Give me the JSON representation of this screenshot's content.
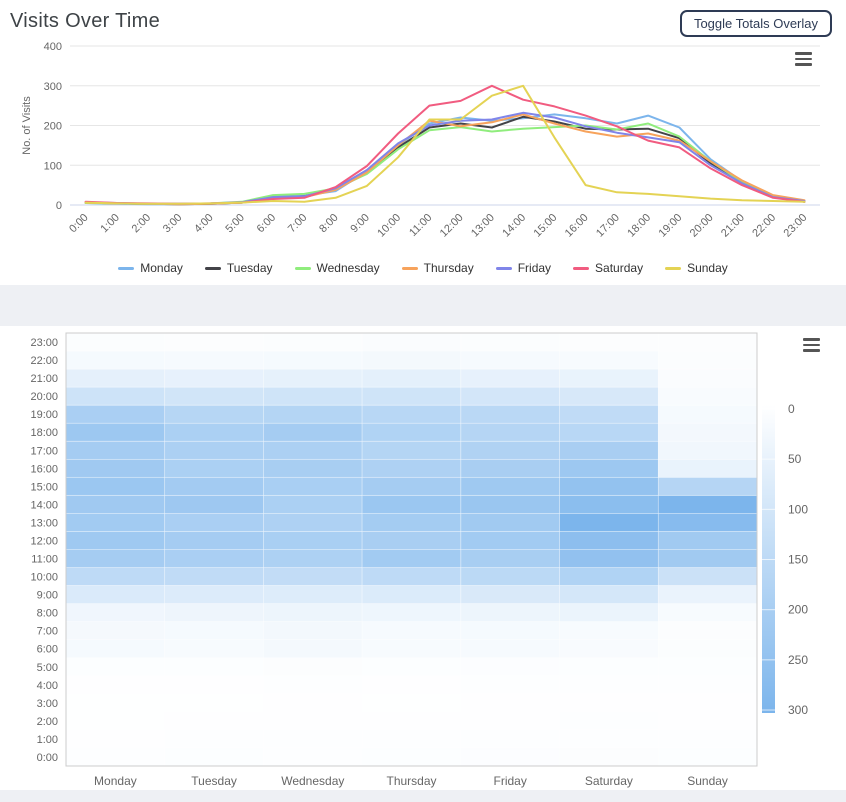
{
  "header": {
    "title": "Visits Over Time",
    "toggle_button_label": "Toggle Totals Overlay"
  },
  "colors": {
    "accent_navy": "#2e3b55",
    "grid": "#e6e6e6",
    "axis_line": "#ccd6eb",
    "plot_border": "#cccccc",
    "label_gray": "#666666",
    "palette": [
      "#7cb5ec",
      "#434348",
      "#90ed7d",
      "#f7a35c",
      "#8085e9",
      "#f15c80",
      "#e4d354"
    ]
  },
  "chart_data": [
    {
      "type": "line",
      "title": "Visits Over Time",
      "xlabel": "",
      "ylabel": "No. of Visits",
      "ylim": [
        0,
        400
      ],
      "yticks": [
        0,
        100,
        200,
        300,
        400
      ],
      "grid": true,
      "legend_position": "bottom",
      "x_categories": [
        "0:00",
        "1:00",
        "2:00",
        "3:00",
        "4:00",
        "5:00",
        "6:00",
        "7:00",
        "8:00",
        "9:00",
        "10:00",
        "11:00",
        "12:00",
        "13:00",
        "14:00",
        "15:00",
        "16:00",
        "17:00",
        "18:00",
        "19:00",
        "20:00",
        "21:00",
        "22:00",
        "23:00"
      ],
      "series": [
        {
          "name": "Monday",
          "color": "#7cb5ec",
          "values": [
            5,
            3,
            2,
            2,
            3,
            6,
            22,
            24,
            35,
            85,
            150,
            205,
            220,
            212,
            218,
            228,
            218,
            205,
            225,
            195,
            115,
            60,
            22,
            10
          ]
        },
        {
          "name": "Tuesday",
          "color": "#434348",
          "values": [
            6,
            4,
            3,
            2,
            3,
            6,
            18,
            22,
            40,
            80,
            145,
            195,
            205,
            195,
            222,
            210,
            192,
            190,
            192,
            168,
            105,
            55,
            20,
            8
          ]
        },
        {
          "name": "Wednesday",
          "color": "#90ed7d",
          "values": [
            5,
            4,
            3,
            3,
            4,
            8,
            25,
            28,
            42,
            78,
            140,
            188,
            196,
            185,
            192,
            196,
            200,
            190,
            205,
            172,
            110,
            58,
            22,
            10
          ]
        },
        {
          "name": "Thursday",
          "color": "#f7a35c",
          "values": [
            6,
            4,
            3,
            2,
            3,
            6,
            18,
            20,
            38,
            82,
            150,
            212,
            198,
            208,
            228,
            205,
            185,
            172,
            180,
            162,
            110,
            62,
            25,
            12
          ]
        },
        {
          "name": "Friday",
          "color": "#8085e9",
          "values": [
            7,
            5,
            3,
            3,
            4,
            7,
            20,
            22,
            42,
            88,
            155,
            200,
            212,
            215,
            232,
            220,
            198,
            182,
            170,
            158,
            100,
            55,
            20,
            10
          ]
        },
        {
          "name": "Saturday",
          "color": "#f15c80",
          "values": [
            8,
            5,
            4,
            3,
            4,
            6,
            15,
            18,
            45,
            98,
            180,
            250,
            262,
            300,
            265,
            248,
            225,
            198,
            162,
            145,
            92,
            50,
            18,
            8
          ]
        },
        {
          "name": "Sunday",
          "color": "#e4d354",
          "values": [
            6,
            4,
            3,
            3,
            4,
            6,
            10,
            8,
            18,
            48,
            120,
            215,
            215,
            275,
            300,
            170,
            50,
            32,
            28,
            22,
            16,
            12,
            10,
            8
          ]
        }
      ]
    },
    {
      "type": "heatmap",
      "x_categories": [
        "Monday",
        "Tuesday",
        "Wednesday",
        "Thursday",
        "Friday",
        "Saturday",
        "Sunday"
      ],
      "y_categories": [
        "0:00",
        "1:00",
        "2:00",
        "3:00",
        "4:00",
        "5:00",
        "6:00",
        "7:00",
        "8:00",
        "9:00",
        "10:00",
        "11:00",
        "12:00",
        "13:00",
        "14:00",
        "15:00",
        "16:00",
        "17:00",
        "18:00",
        "19:00",
        "20:00",
        "21:00",
        "22:00",
        "23:00"
      ],
      "y_order": "bottom-to-top",
      "color_axis": {
        "min": 0,
        "max": 300,
        "ticks": [
          0,
          50,
          100,
          150,
          200,
          250,
          300
        ],
        "min_color": "#ffffff",
        "max_color": "#7cb5ec",
        "position": "right"
      },
      "series": [
        {
          "name": "Monday",
          "values": [
            5,
            3,
            2,
            2,
            3,
            6,
            22,
            24,
            35,
            85,
            150,
            205,
            220,
            212,
            218,
            228,
            218,
            205,
            225,
            195,
            115,
            60,
            22,
            10
          ]
        },
        {
          "name": "Tuesday",
          "values": [
            6,
            4,
            3,
            2,
            3,
            6,
            18,
            22,
            40,
            80,
            145,
            195,
            205,
            195,
            222,
            210,
            192,
            190,
            192,
            168,
            105,
            55,
            20,
            8
          ]
        },
        {
          "name": "Wednesday",
          "values": [
            5,
            4,
            3,
            3,
            4,
            8,
            25,
            28,
            42,
            78,
            140,
            188,
            196,
            185,
            192,
            196,
            200,
            190,
            205,
            172,
            110,
            58,
            22,
            10
          ]
        },
        {
          "name": "Thursday",
          "values": [
            6,
            4,
            3,
            2,
            3,
            6,
            18,
            20,
            38,
            82,
            150,
            212,
            198,
            208,
            228,
            205,
            185,
            172,
            180,
            162,
            110,
            62,
            25,
            12
          ]
        },
        {
          "name": "Friday",
          "values": [
            7,
            5,
            3,
            3,
            4,
            7,
            20,
            22,
            42,
            88,
            155,
            200,
            212,
            215,
            232,
            220,
            198,
            182,
            170,
            158,
            100,
            55,
            20,
            10
          ]
        },
        {
          "name": "Saturday",
          "values": [
            8,
            5,
            4,
            3,
            4,
            6,
            15,
            18,
            45,
            98,
            180,
            250,
            262,
            300,
            265,
            248,
            225,
            198,
            162,
            145,
            92,
            50,
            18,
            8
          ]
        },
        {
          "name": "Sunday",
          "values": [
            6,
            4,
            3,
            3,
            4,
            6,
            10,
            8,
            18,
            48,
            120,
            215,
            215,
            275,
            300,
            170,
            50,
            32,
            28,
            22,
            16,
            12,
            10,
            8
          ]
        }
      ]
    }
  ]
}
